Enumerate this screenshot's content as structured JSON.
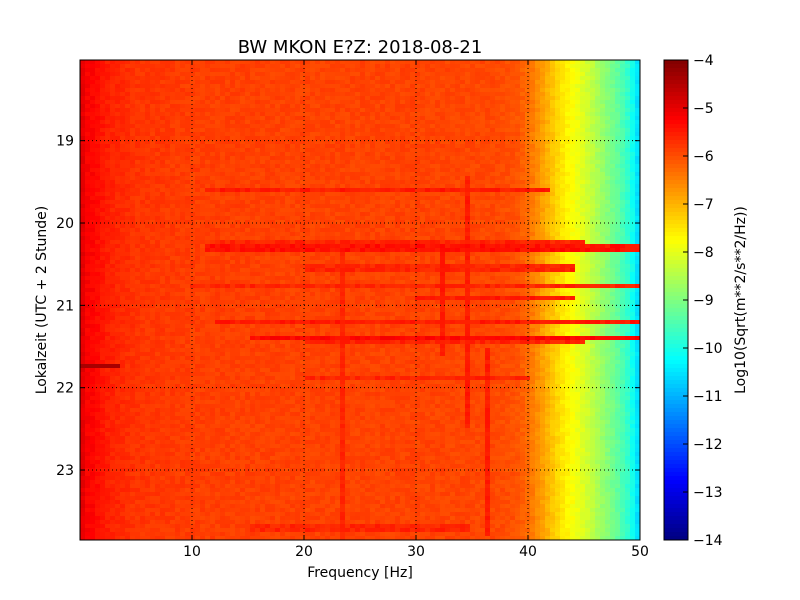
{
  "chart_data": {
    "type": "heatmap",
    "title": "BW MKON E?Z: 2018-08-21",
    "xlabel": "Frequency [Hz]",
    "ylabel": "Lokalzeit (UTC + 2 Stunde)",
    "xlim": [
      0,
      50
    ],
    "ylim": [
      18.02,
      23.85
    ],
    "y_inverted": true,
    "xticks": [
      {
        "value": 10,
        "label": "10"
      },
      {
        "value": 20,
        "label": "20"
      },
      {
        "value": 30,
        "label": "30"
      },
      {
        "value": 40,
        "label": "40"
      },
      {
        "value": 50,
        "label": "50"
      }
    ],
    "yticks": [
      {
        "value": 19,
        "label": "19"
      },
      {
        "value": 20,
        "label": "20"
      },
      {
        "value": 21,
        "label": "21"
      },
      {
        "value": 22,
        "label": "22"
      },
      {
        "value": 23,
        "label": "23"
      }
    ],
    "grid": true,
    "colormap": "jet",
    "colorbar": {
      "label": "Log10(Sqrt(m**2/s**2/Hz))",
      "range": [
        -14,
        -4
      ],
      "ticks": [
        {
          "value": -4,
          "label": "−4"
        },
        {
          "value": -5,
          "label": "−5"
        },
        {
          "value": -6,
          "label": "−6"
        },
        {
          "value": -7,
          "label": "−7"
        },
        {
          "value": -8,
          "label": "−8"
        },
        {
          "value": -9,
          "label": "−9"
        },
        {
          "value": -10,
          "label": "−10"
        },
        {
          "value": -11,
          "label": "−11"
        },
        {
          "value": -12,
          "label": "−12"
        },
        {
          "value": -13,
          "label": "−13"
        },
        {
          "value": -14,
          "label": "−14"
        }
      ]
    },
    "frequency_profile": [
      {
        "freq": 0,
        "value": -5.2
      },
      {
        "freq": 1,
        "value": -5.25
      },
      {
        "freq": 2.5,
        "value": -5.55
      },
      {
        "freq": 5,
        "value": -5.75
      },
      {
        "freq": 10,
        "value": -5.85
      },
      {
        "freq": 20,
        "value": -5.9
      },
      {
        "freq": 30,
        "value": -5.9
      },
      {
        "freq": 37,
        "value": -5.95
      },
      {
        "freq": 39,
        "value": -6.05
      },
      {
        "freq": 40,
        "value": -6.3
      },
      {
        "freq": 41,
        "value": -6.7
      },
      {
        "freq": 42,
        "value": -7.1
      },
      {
        "freq": 43,
        "value": -7.5
      },
      {
        "freq": 44,
        "value": -7.8
      },
      {
        "freq": 45,
        "value": -8.1
      },
      {
        "freq": 46,
        "value": -8.5
      },
      {
        "freq": 47,
        "value": -8.9
      },
      {
        "freq": 48,
        "value": -9.3
      },
      {
        "freq": 49,
        "value": -9.8
      },
      {
        "freq": 49.6,
        "value": -10.3
      },
      {
        "freq": 50,
        "value": -10.8
      }
    ],
    "features": [
      {
        "type": "burst",
        "time_start": 21.7,
        "time_end": 21.78,
        "freq_start": 0,
        "freq_end": 3.5,
        "value": -4.4
      },
      {
        "type": "band",
        "time": 19.6,
        "freq_start": 11,
        "freq_end": 42,
        "value": -5.5
      },
      {
        "type": "band",
        "time": 20.22,
        "freq_start": 12,
        "freq_end": 45,
        "value": -5.6
      },
      {
        "type": "band",
        "time": 20.3,
        "freq_start": 11,
        "freq_end": 50,
        "value": -5.4
      },
      {
        "type": "band",
        "time": 20.55,
        "freq_start": 20,
        "freq_end": 44,
        "value": -5.6
      },
      {
        "type": "band",
        "time": 20.75,
        "freq_start": 10,
        "freq_end": 50,
        "value": -5.6
      },
      {
        "type": "band",
        "time": 20.92,
        "freq_start": 30,
        "freq_end": 44,
        "value": -5.5
      },
      {
        "type": "band",
        "time": 21.2,
        "freq_start": 12,
        "freq_end": 50,
        "value": -5.5
      },
      {
        "type": "band",
        "time": 21.38,
        "freq_start": 15,
        "freq_end": 50,
        "value": -5.3
      },
      {
        "type": "band",
        "time": 21.46,
        "freq_start": 20,
        "freq_end": 45,
        "value": -5.6
      },
      {
        "type": "band",
        "time": 21.87,
        "freq_start": 20,
        "freq_end": 40,
        "value": -5.6
      },
      {
        "type": "band",
        "time": 23.7,
        "freq_start": 15,
        "freq_end": 35,
        "value": -5.6
      },
      {
        "type": "line",
        "freq": 34.5,
        "time_start": 19.45,
        "time_end": 22.5,
        "value": -5.5
      },
      {
        "type": "line",
        "freq": 36.5,
        "time_start": 21.5,
        "time_end": 23.8,
        "value": -5.5
      },
      {
        "type": "line",
        "freq": 23.3,
        "time_start": 20.3,
        "time_end": 23.85,
        "value": -5.6
      },
      {
        "type": "line",
        "freq": 32.5,
        "time_start": 20.3,
        "time_end": 21.6,
        "value": -5.5
      },
      {
        "type": "line",
        "freq": 0.4,
        "time_start": 18.02,
        "time_end": 23.85,
        "value": -5.0
      }
    ]
  }
}
